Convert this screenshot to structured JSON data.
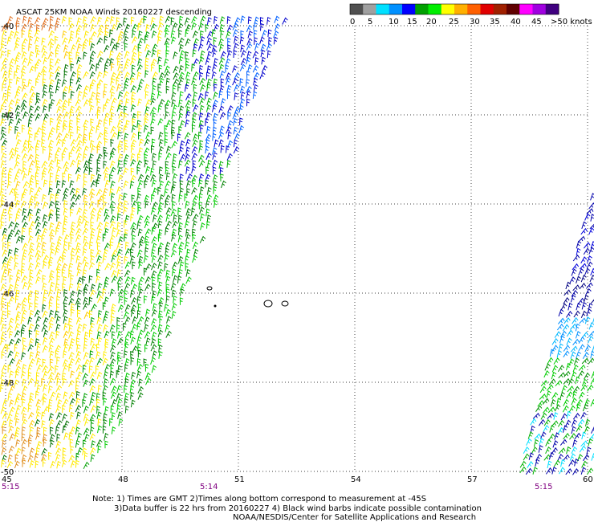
{
  "title": "ASCAT 25KM NOAA Winds 20160227 descending",
  "legend": {
    "labels": [
      "0",
      "5",
      "10",
      "15",
      "20",
      "25",
      "30",
      "35",
      "40",
      "45",
      ">50 knots"
    ],
    "colors": [
      "#505050",
      "#a0a0a0",
      "#00e0ff",
      "#0090ff",
      "#0000ff",
      "#00a000",
      "#00ee00",
      "#ffff00",
      "#ffb000",
      "#ff6000",
      "#e00000",
      "#a02000",
      "#600000",
      "#ff00ff",
      "#a000e0",
      "#400080"
    ]
  },
  "axes": {
    "lon_labels": [
      "45",
      "48",
      "51",
      "54",
      "57",
      "60"
    ],
    "lat_labels": [
      "-40",
      "-42",
      "-44",
      "-46",
      "-48",
      "-50"
    ],
    "times_bottom": [
      "5:15",
      "5:14",
      "5:15"
    ]
  },
  "notes": {
    "line1": "Note: 1) Times are GMT 2)Times along bottom correspond to measurement at -45S",
    "line2": "3)Data buffer is 22 hrs from 20160227 4) Black wind barbs indicate possible contamination",
    "line3": "NOAA/NESDIS/Center for Satellite Applications and Research"
  }
}
